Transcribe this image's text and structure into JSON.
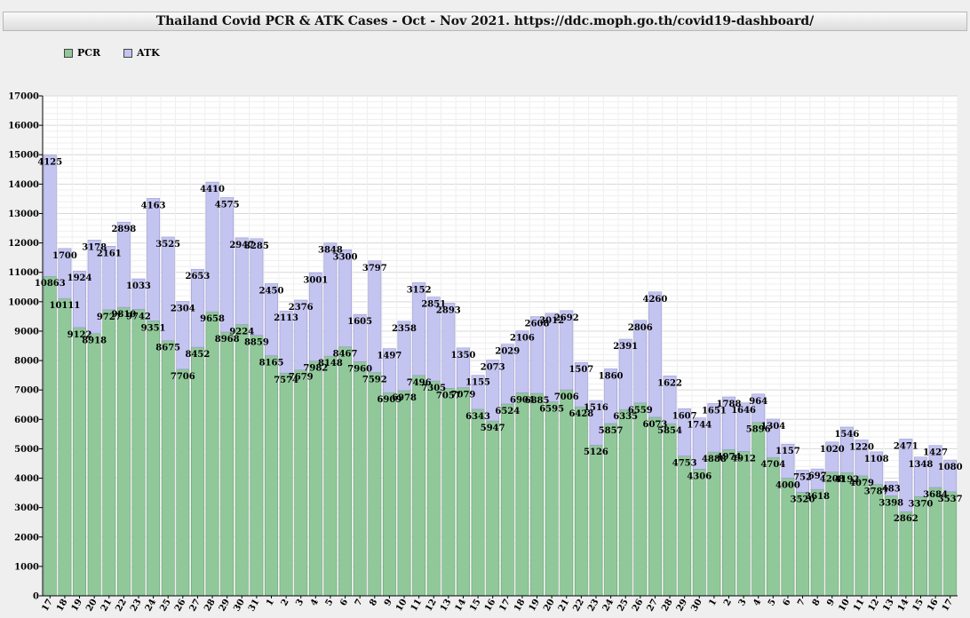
{
  "chart_data": {
    "type": "bar",
    "stacked": true,
    "title": "Thailand Covid PCR & ATK Cases - Oct - Nov 2021. https://ddc.moph.go.th/covid19-dashboard/",
    "xlabel": "",
    "ylabel": "",
    "ylim": [
      0,
      17000
    ],
    "yticks": [
      "0",
      "1000",
      "2000",
      "3000",
      "4000",
      "5000",
      "6000",
      "7000",
      "8000",
      "9000",
      "10000",
      "11000",
      "12000",
      "13000",
      "14000",
      "15000",
      "16000",
      "17000"
    ],
    "grid": true,
    "legend_position": "top-left",
    "categories": [
      "17",
      "18",
      "19",
      "20",
      "21",
      "22",
      "23",
      "24",
      "25",
      "26",
      "27",
      "28",
      "29",
      "30",
      "31",
      "1",
      "2",
      "3",
      "4",
      "5",
      "6",
      "7",
      "8",
      "9",
      "10",
      "11",
      "12",
      "13",
      "14",
      "15",
      "16",
      "17",
      "18",
      "19",
      "20",
      "21",
      "22",
      "23",
      "24",
      "25",
      "26",
      "27",
      "28",
      "29",
      "30",
      "1",
      "2",
      "3",
      "4",
      "5",
      "6",
      "7",
      "8",
      "9",
      "10",
      "11",
      "12",
      "13",
      "14",
      "15",
      "16",
      "17"
    ],
    "series": [
      {
        "name": "PCR",
        "color": "#90c89a",
        "values": [
          10863,
          10111,
          9122,
          8918,
          9727,
          9810,
          9742,
          9351,
          8675,
          7706,
          8452,
          9658,
          8968,
          9224,
          8859,
          8165,
          7574,
          7679,
          7982,
          8148,
          8467,
          7960,
          7592,
          6909,
          6978,
          7496,
          7305,
          7057,
          7079,
          6343,
          5947,
          6524,
          6904,
          6885,
          6595,
          7006,
          6428,
          5126,
          5857,
          6335,
          6559,
          6073,
          5854,
          4753,
          4306,
          4888,
          4974,
          4912,
          5896,
          4704,
          4000,
          3520,
          3618,
          4208,
          4192,
          4079,
          3787,
          3398,
          2862,
          3370,
          3684,
          3537
        ]
      },
      {
        "name": "ATK",
        "color": "#c4c4f0",
        "values": [
          4125,
          1700,
          1924,
          3178,
          2161,
          2898,
          1033,
          4163,
          3525,
          2304,
          2653,
          4410,
          4575,
          2947,
          3285,
          2450,
          2113,
          2376,
          3001,
          3848,
          3300,
          1605,
          3797,
          1497,
          2358,
          3152,
          2851,
          2893,
          1350,
          1155,
          2073,
          2029,
          2106,
          2608,
          3012,
          2692,
          1507,
          1516,
          1860,
          2391,
          2806,
          4260,
          1622,
          1607,
          1744,
          1651,
          1788,
          1646,
          964,
          1304,
          1157,
          752,
          697,
          1020,
          1546,
          1220,
          1108,
          483,
          2471,
          1348,
          1427,
          1080
        ]
      }
    ]
  }
}
